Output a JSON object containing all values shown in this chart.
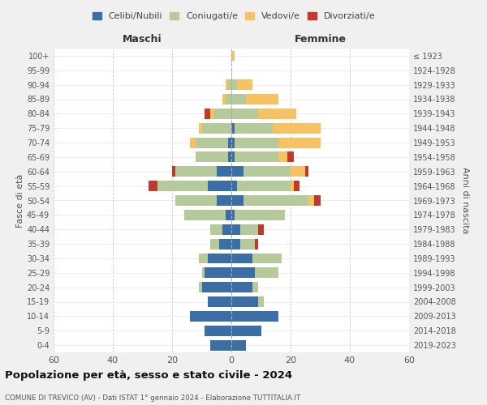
{
  "age_groups": [
    "0-4",
    "5-9",
    "10-14",
    "15-19",
    "20-24",
    "25-29",
    "30-34",
    "35-39",
    "40-44",
    "45-49",
    "50-54",
    "55-59",
    "60-64",
    "65-69",
    "70-74",
    "75-79",
    "80-84",
    "85-89",
    "90-94",
    "95-99",
    "100+"
  ],
  "birth_years": [
    "2019-2023",
    "2014-2018",
    "2009-2013",
    "2004-2008",
    "1999-2003",
    "1994-1998",
    "1989-1993",
    "1984-1988",
    "1979-1983",
    "1974-1978",
    "1969-1973",
    "1964-1968",
    "1959-1963",
    "1954-1958",
    "1949-1953",
    "1944-1948",
    "1939-1943",
    "1934-1938",
    "1929-1933",
    "1924-1928",
    "≤ 1923"
  ],
  "colors": {
    "celibi": "#3a6ea5",
    "coniugati": "#b5c99a",
    "vedovi": "#f5c264",
    "divorziati": "#c0392b"
  },
  "males": {
    "celibi": [
      7,
      9,
      14,
      8,
      10,
      9,
      8,
      4,
      3,
      2,
      5,
      8,
      5,
      1,
      1,
      0,
      0,
      0,
      0,
      0,
      0
    ],
    "coniugati": [
      0,
      0,
      0,
      0,
      1,
      1,
      3,
      3,
      4,
      14,
      14,
      17,
      14,
      11,
      11,
      10,
      6,
      2,
      1,
      0,
      0
    ],
    "vedovi": [
      0,
      0,
      0,
      0,
      0,
      0,
      0,
      0,
      0,
      0,
      0,
      0,
      0,
      0,
      2,
      1,
      1,
      1,
      1,
      0,
      0
    ],
    "divorziati": [
      0,
      0,
      0,
      0,
      0,
      0,
      0,
      0,
      0,
      0,
      0,
      3,
      1,
      0,
      0,
      0,
      2,
      0,
      0,
      0,
      0
    ]
  },
  "females": {
    "celibi": [
      5,
      10,
      16,
      9,
      7,
      8,
      7,
      3,
      3,
      1,
      4,
      2,
      4,
      1,
      1,
      1,
      0,
      0,
      0,
      0,
      0
    ],
    "coniugati": [
      0,
      0,
      0,
      2,
      2,
      8,
      10,
      5,
      6,
      17,
      22,
      18,
      16,
      15,
      15,
      13,
      9,
      5,
      2,
      0,
      0
    ],
    "vedovi": [
      0,
      0,
      0,
      0,
      0,
      0,
      0,
      0,
      0,
      0,
      2,
      1,
      5,
      3,
      14,
      16,
      13,
      11,
      5,
      0,
      1
    ],
    "divorziati": [
      0,
      0,
      0,
      0,
      0,
      0,
      0,
      1,
      2,
      0,
      2,
      2,
      1,
      2,
      0,
      0,
      0,
      0,
      0,
      0,
      0
    ]
  },
  "title": "Popolazione per età, sesso e stato civile - 2024",
  "subtitle": "COMUNE DI TREVICO (AV) - Dati ISTAT 1° gennaio 2024 - Elaborazione TUTTITALIA.IT",
  "xlabel_left": "Maschi",
  "xlabel_right": "Femmine",
  "ylabel_left": "Fasce di età",
  "ylabel_right": "Anni di nascita",
  "xlim": 60,
  "legend_labels": [
    "Celibi/Nubili",
    "Coniugati/e",
    "Vedovi/e",
    "Divorziati/e"
  ],
  "bg_color": "#f0f0f0",
  "plot_bg": "#ffffff"
}
